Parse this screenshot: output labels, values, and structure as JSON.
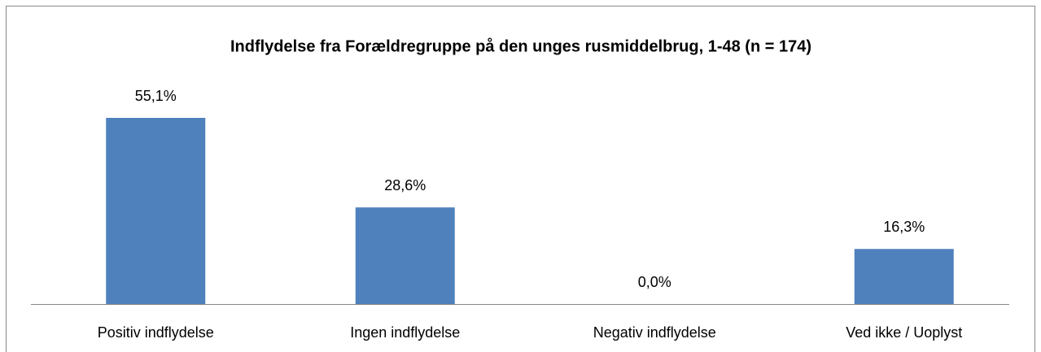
{
  "chart_data": {
    "type": "bar",
    "title": "Indflydelse fra  Forældregruppe på den unges rusmiddelbrug, 1-48 (n = 174)",
    "categories": [
      "Positiv indflydelse",
      "Ingen indflydelse",
      "Negativ indflydelse",
      "Ved ikke / Uoplyst"
    ],
    "values": [
      55.1,
      28.6,
      0,
      16.3
    ],
    "value_labels": [
      "55,1%",
      "28,6%",
      "0,0%",
      "16,3%"
    ],
    "color": "#4f81bd"
  }
}
